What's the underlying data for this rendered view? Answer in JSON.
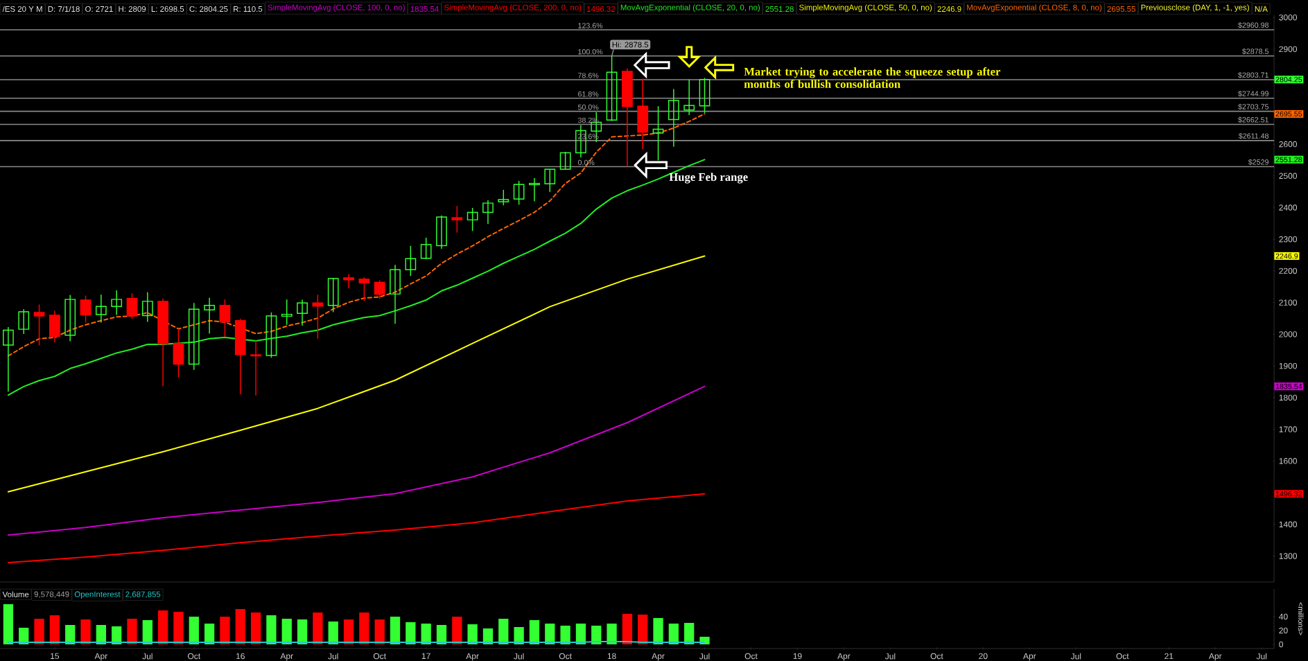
{
  "chart_data": [
    {
      "type": "candlestick",
      "title": "/ES 20 Y M",
      "legend": "top",
      "x": [
        "2014-10",
        "2014-11",
        "2014-12",
        "2015-01",
        "2015-02",
        "2015-03",
        "2015-04",
        "2015-05",
        "2015-06",
        "2015-07",
        "2015-08",
        "2015-09",
        "2015-10",
        "2015-11",
        "2015-12",
        "2016-01",
        "2016-02",
        "2016-03",
        "2016-04",
        "2016-05",
        "2016-06",
        "2016-07",
        "2016-08",
        "2016-09",
        "2016-10",
        "2016-11",
        "2016-12",
        "2017-01",
        "2017-02",
        "2017-03",
        "2017-04",
        "2017-05",
        "2017-06",
        "2017-07",
        "2017-08",
        "2017-09",
        "2017-10",
        "2017-11",
        "2017-12",
        "2018-01",
        "2018-02",
        "2018-03",
        "2018-04",
        "2018-05",
        "2018-06",
        "2018-07"
      ],
      "ohlc": [
        [
          1966,
          2023,
          1819,
          2013
        ],
        [
          2016,
          2079,
          2001,
          2071
        ],
        [
          2069,
          2094,
          1965,
          2058
        ],
        [
          2060,
          2074,
          1974,
          1993
        ],
        [
          1997,
          2124,
          1978,
          2110
        ],
        [
          2108,
          2122,
          2037,
          2061
        ],
        [
          2062,
          2125,
          2037,
          2088
        ],
        [
          2088,
          2139,
          2061,
          2110
        ],
        [
          2113,
          2129,
          2049,
          2058
        ],
        [
          2059,
          2133,
          2039,
          2104
        ],
        [
          2104,
          2113,
          1836,
          1970
        ],
        [
          1971,
          2017,
          1864,
          1906
        ],
        [
          1906,
          2099,
          1888,
          2079
        ],
        [
          2077,
          2115,
          2002,
          2091
        ],
        [
          2091,
          2110,
          1991,
          2039
        ],
        [
          2043,
          2049,
          1810,
          1936
        ],
        [
          1935,
          1980,
          1807,
          1932
        ],
        [
          1933,
          2069,
          1926,
          2058
        ],
        [
          2057,
          2110,
          2030,
          2063
        ],
        [
          2066,
          2109,
          2027,
          2099
        ],
        [
          2099,
          2125,
          1986,
          2089
        ],
        [
          2091,
          2178,
          2070,
          2176
        ],
        [
          2178,
          2190,
          2145,
          2172
        ],
        [
          2174,
          2180,
          2105,
          2162
        ],
        [
          2164,
          2170,
          2112,
          2126
        ],
        [
          2127,
          2219,
          2033,
          2204
        ],
        [
          2204,
          2279,
          2184,
          2239
        ],
        [
          2240,
          2305,
          2238,
          2283
        ],
        [
          2280,
          2375,
          2270,
          2370
        ],
        [
          2368,
          2405,
          2321,
          2361
        ],
        [
          2361,
          2399,
          2326,
          2385
        ],
        [
          2385,
          2423,
          2348,
          2414
        ],
        [
          2418,
          2456,
          2407,
          2425
        ],
        [
          2427,
          2484,
          2409,
          2473
        ],
        [
          2472,
          2493,
          2420,
          2476
        ],
        [
          2475,
          2521,
          2449,
          2521
        ],
        [
          2521,
          2576,
          2519,
          2573
        ],
        [
          2573,
          2660,
          2558,
          2643
        ],
        [
          2641,
          2701,
          2607,
          2669
        ],
        [
          2676,
          2878.5,
          2673,
          2827
        ],
        [
          2830,
          2839,
          2529,
          2719
        ],
        [
          2720,
          2807,
          2584,
          2638
        ],
        [
          2635,
          2720,
          2549,
          2647
        ],
        [
          2678,
          2774,
          2592,
          2738
        ],
        [
          2708,
          2804,
          2692,
          2722
        ],
        [
          2721,
          2809,
          2698.5,
          2804.25
        ]
      ],
      "colors": [
        "#33ff33",
        "#33ff33",
        "#ff0000",
        "#ff0000",
        "#33ff33",
        "#ff0000",
        "#33ff33",
        "#33ff33",
        "#ff0000",
        "#33ff33",
        "#ff0000",
        "#ff0000",
        "#33ff33",
        "#33ff33",
        "#ff0000",
        "#ff0000",
        "#ff0000",
        "#33ff33",
        "#33ff33",
        "#33ff33",
        "#ff0000",
        "#33ff33",
        "#ff0000",
        "#ff0000",
        "#ff0000",
        "#33ff33",
        "#33ff33",
        "#33ff33",
        "#33ff33",
        "#ff0000",
        "#33ff33",
        "#33ff33",
        "#33ff33",
        "#33ff33",
        "#33ff33",
        "#33ff33",
        "#33ff33",
        "#33ff33",
        "#33ff33",
        "#33ff33",
        "#ff0000",
        "#ff0000",
        "#33ff33",
        "#33ff33",
        "#33ff33",
        "#33ff33"
      ],
      "series": [
        {
          "name": "SimpleMovingAvg (CLOSE, 100, 0, no)",
          "type": "line",
          "color": "#cc00cc",
          "x": [
            "2014-10",
            "2015-03",
            "2015-08",
            "2016-01",
            "2016-06",
            "2016-11",
            "2017-04",
            "2017-09",
            "2018-02",
            "2018-07"
          ],
          "values": [
            1366,
            1390,
            1421,
            1445,
            1469,
            1497,
            1550,
            1626,
            1721,
            1835.54
          ]
        },
        {
          "name": "SimpleMovingAvg (CLOSE, 200, 0, no)",
          "type": "line",
          "color": "#ff0000",
          "x": [
            "2014-10",
            "2015-03",
            "2015-08",
            "2016-01",
            "2016-06",
            "2016-11",
            "2017-04",
            "2017-09",
            "2018-02",
            "2018-07"
          ],
          "values": [
            1279,
            1297,
            1318,
            1342,
            1363,
            1382,
            1405,
            1440,
            1474,
            1496.32
          ]
        },
        {
          "name": "MovAvgExponential (CLOSE, 20, 0, no)",
          "type": "line",
          "color": "#22ee22",
          "values": [
            1808,
            1835,
            1854,
            1867,
            1892,
            1907,
            1924,
            1941,
            1953,
            1968,
            1968,
            null,
            1975,
            1986,
            1990,
            null,
            1979,
            1987,
            1994,
            2005,
            2013,
            2030,
            2042,
            2053,
            2059,
            2074,
            2090,
            2108,
            2137,
            2155,
            2177,
            2199,
            2224,
            2246,
            2268,
            2294,
            2319,
            2350,
            2395,
            2430,
            2453,
            2471,
            2490,
            2511,
            2532,
            2551.28
          ]
        },
        {
          "name": "SimpleMovingAvg (CLOSE, 50, 0, no)",
          "type": "line",
          "color": "#ffff00",
          "x": [
            "2014-10",
            "2015-03",
            "2015-08",
            "2016-01",
            "2016-06",
            "2016-11",
            "2017-04",
            "2017-09",
            "2018-02",
            "2018-07"
          ],
          "values": [
            1503,
            1566,
            1629,
            1697,
            1766,
            1855,
            1971,
            2087,
            2174,
            2246.9
          ]
        },
        {
          "name": "MovAvgExponential (CLOSE, 8, 0, no)",
          "type": "line",
          "color": "#ff6600",
          "line_style": "dashed",
          "values": [
            1932,
            1961,
            1986,
            1990,
            2013,
            2030,
            2043,
            2055,
            2058,
            2068,
            null,
            2017,
            2030,
            2043,
            2038,
            null,
            2002,
            2009,
            2026,
            2037,
            2051,
            2080,
            2101,
            2114,
            2118,
            2133,
            2159,
            2184,
            2224,
            2253,
            2279,
            2308,
            2334,
            2359,
            2385,
            2421,
            2476,
            2509,
            2575,
            2623,
            2626,
            2629,
            2635,
            2651,
            2672,
            2695.55
          ]
        }
      ],
      "ref_lines": [
        {
          "axis": "y",
          "value": 2960.98,
          "label": "$2960.98",
          "color": "#8a8a8a"
        },
        {
          "axis": "y",
          "value": 2878.5,
          "label": "$2878.5",
          "color": "#8a8a8a"
        },
        {
          "axis": "y",
          "value": 2803.71,
          "label": "$2803.71",
          "color": "#8a8a8a"
        },
        {
          "axis": "y",
          "value": 2744.99,
          "label": "$2744.99",
          "color": "#8a8a8a"
        },
        {
          "axis": "y",
          "value": 2703.75,
          "label": "$2703.75",
          "color": "#8a8a8a"
        },
        {
          "axis": "y",
          "value": 2662.51,
          "label": "$2662.51",
          "color": "#8a8a8a"
        },
        {
          "axis": "y",
          "value": 2611.48,
          "label": "$2611.48",
          "color": "#8a8a8a"
        },
        {
          "axis": "y",
          "value": 2529,
          "label": "$2529",
          "color": "#8a8a8a"
        }
      ],
      "annotations": [
        "D: 7/1/18",
        "O: 2721",
        "H: 2809",
        "L: 2698.5",
        "C: 2804.25",
        "R: 110.5",
        "1835.54",
        "1496.32",
        "2551.28",
        "2246.9",
        "2695.55",
        "Previousclose (DAY, 1, -1, yes)",
        "N/A",
        "2804.25",
        "1835.54",
        "1496.32",
        "2551.28",
        "2246.9",
        "2695.55",
        {
          "text": "Hi: 2878.5",
          "x": "2018-01",
          "y": 2878.5
        },
        {
          "text": "Huge Feb range",
          "x": "2018-04-20",
          "y": 2493
        },
        {
          "text": "Market trying to accelerate the squeeze setup after months of bullish consolidation",
          "x": "2018-09-15",
          "y": 2810
        },
        {
          "text": "123.6%",
          "x": "2017-11",
          "y": 2960.98
        },
        {
          "text": "100.0%",
          "x": "2017-11",
          "y": 2878.5
        },
        {
          "text": "78.6%",
          "x": "2017-11",
          "y": 2803.71
        },
        {
          "text": "61.8%",
          "x": "2017-11",
          "y": 2744.99
        },
        {
          "text": "50.0%",
          "x": "2017-11",
          "y": 2703.75
        },
        {
          "text": "38.2%",
          "x": "2017-11",
          "y": 2662.51
        },
        {
          "text": "23.6%",
          "x": "2017-11",
          "y": 2611.48
        },
        {
          "text": "0.0%",
          "x": "2017-11",
          "y": 2529
        }
      ],
      "xlim": [
        "2014-09-15",
        "2021-07-25"
      ],
      "ylim": [
        1218,
        3007
      ],
      "yticks": [
        1300,
        1400,
        {
          "value": 1500,
          "label": null
        },
        1600,
        1700,
        1800,
        1900,
        2000,
        2100,
        2200,
        2300,
        2400,
        2500,
        2600,
        {
          "value": 2700,
          "label": null
        },
        {
          "value": 2800,
          "label": null
        },
        2900,
        3000
      ],
      "tick_labels": "y"
    },
    {
      "type": "bar",
      "legend": "top left",
      "ylabel": "<millions>",
      "x": [
        "2014-10",
        "2014-11",
        "2014-12",
        "2015-01",
        "2015-02",
        "2015-03",
        "2015-04",
        "2015-05",
        "2015-06",
        "2015-07",
        "2015-08",
        "2015-09",
        "2015-10",
        "2015-11",
        "2015-12",
        "2016-01",
        "2016-02",
        "2016-03",
        "2016-04",
        "2016-05",
        "2016-06",
        "2016-07",
        "2016-08",
        "2016-09",
        "2016-10",
        "2016-11",
        "2016-12",
        "2017-01",
        "2017-02",
        "2017-03",
        "2017-04",
        "2017-05",
        "2017-06",
        "2017-07",
        "2017-08",
        "2017-09",
        "2017-10",
        "2017-11",
        "2017-12",
        "2018-01",
        "2018-02",
        "2018-03",
        "2018-04",
        "2018-05",
        "2018-06",
        "2018-07"
      ],
      "series": [
        {
          "name": "Volume",
          "values": [
            58,
            24,
            37,
            42,
            28,
            36,
            28,
            26,
            37,
            35,
            49,
            47,
            40,
            30,
            40,
            51,
            46,
            42,
            37,
            36,
            46,
            33,
            36,
            46,
            36,
            40,
            32,
            30,
            28,
            40,
            29,
            23,
            37,
            25,
            35,
            30,
            27,
            30,
            27,
            30,
            44,
            43,
            38,
            30,
            31,
            11
          ],
          "colors": [
            "#33ff33",
            "#33ff33",
            "#ff0000",
            "#ff0000",
            "#33ff33",
            "#ff0000",
            "#33ff33",
            "#33ff33",
            "#ff0000",
            "#33ff33",
            "#ff0000",
            "#ff0000",
            "#33ff33",
            "#33ff33",
            "#ff0000",
            "#ff0000",
            "#ff0000",
            "#33ff33",
            "#33ff33",
            "#33ff33",
            "#ff0000",
            "#33ff33",
            "#ff0000",
            "#ff0000",
            "#ff0000",
            "#33ff33",
            "#33ff33",
            "#33ff33",
            "#33ff33",
            "#ff0000",
            "#33ff33",
            "#33ff33",
            "#33ff33",
            "#33ff33",
            "#33ff33",
            "#33ff33",
            "#33ff33",
            "#33ff33",
            "#33ff33",
            "#33ff33",
            "#ff0000",
            "#ff0000",
            "#33ff33",
            "#33ff33",
            "#33ff33",
            "#33ff33"
          ]
        },
        {
          "name": "OpenInterest",
          "type": "line",
          "color": "#22cccc",
          "values": [
            3,
            3,
            3,
            3,
            3,
            3,
            3,
            3,
            3,
            3,
            3,
            3,
            3,
            3,
            3,
            3,
            3,
            3,
            3,
            3,
            3,
            3,
            3,
            3,
            3,
            3,
            3,
            3,
            3,
            3,
            3,
            3,
            3,
            3,
            3,
            3,
            3,
            3,
            4,
            4,
            4,
            3,
            3,
            3,
            3,
            3
          ]
        }
      ],
      "annotations": [
        "9,578,449",
        "2,687,855"
      ],
      "xlim": [
        "2014-09-15",
        "2021-07-25"
      ],
      "ylim": [
        -6,
        80
      ],
      "yticks": [
        0,
        20,
        40
      ],
      "xticks": [
        {
          "value": "2015-01",
          "label": "15"
        },
        {
          "value": "2015-04",
          "label": "Apr"
        },
        {
          "value": "2015-07",
          "label": "Jul"
        },
        {
          "value": "2015-10",
          "label": "Oct"
        },
        {
          "value": "2016-01",
          "label": "16"
        },
        {
          "value": "2016-04",
          "label": "Apr"
        },
        {
          "value": "2016-07",
          "label": "Jul"
        },
        {
          "value": "2016-10",
          "label": "Oct"
        },
        {
          "value": "2017-01",
          "label": "17"
        },
        {
          "value": "2017-04",
          "label": "Apr"
        },
        {
          "value": "2017-07",
          "label": "Jul"
        },
        {
          "value": "2017-10",
          "label": "Oct"
        },
        {
          "value": "2018-01",
          "label": "18"
        },
        {
          "value": "2018-04",
          "label": "Apr"
        },
        {
          "value": "2018-07",
          "label": "Jul"
        },
        {
          "value": "2018-10",
          "label": "Oct"
        },
        {
          "value": "2019-01",
          "label": "19"
        },
        {
          "value": "2019-04",
          "label": "Apr"
        },
        {
          "value": "2019-07",
          "label": "Jul"
        },
        {
          "value": "2019-10",
          "label": "Oct"
        },
        {
          "value": "2020-01",
          "label": "20"
        },
        {
          "value": "2020-04",
          "label": "Apr"
        },
        {
          "value": "2020-07",
          "label": "Jul"
        },
        {
          "value": "2020-10",
          "label": "Oct"
        },
        {
          "value": "2021-01",
          "label": "21"
        },
        {
          "value": "2021-04",
          "label": "Apr"
        },
        {
          "value": "2021-07",
          "label": "Jul"
        }
      ]
    }
  ]
}
